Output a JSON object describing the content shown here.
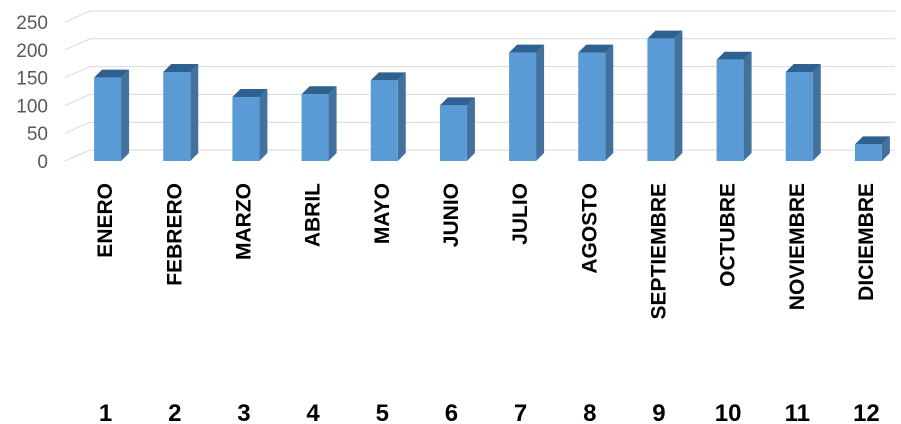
{
  "chart_data": {
    "type": "bar",
    "style": "3d-column",
    "title": "",
    "xlabel": "",
    "ylabel": "",
    "ylim": [
      0,
      250
    ],
    "yticks": [
      0,
      50,
      100,
      150,
      200,
      250
    ],
    "grid": true,
    "legend": "none",
    "categories": [
      "ENERO",
      "FEBRERO",
      "MARZO",
      "ABRIL",
      "MAYO",
      "JUNIO",
      "JULIO",
      "AGOSTO",
      "SEPTIEMBRE",
      "OCTUBRE",
      "NOVIEMBRE",
      "DICIEMBRE"
    ],
    "numbers": [
      "1",
      "2",
      "3",
      "4",
      "5",
      "6",
      "7",
      "8",
      "9",
      "10",
      "11",
      "12"
    ],
    "values": [
      150,
      160,
      115,
      120,
      145,
      100,
      195,
      195,
      220,
      182,
      160,
      30
    ],
    "colors": {
      "bar_front": "#5B9BD5",
      "bar_side": "#41719C",
      "bar_top": "#2E6190",
      "grid": "#D9D9D9",
      "tick_text": "#595959"
    }
  }
}
